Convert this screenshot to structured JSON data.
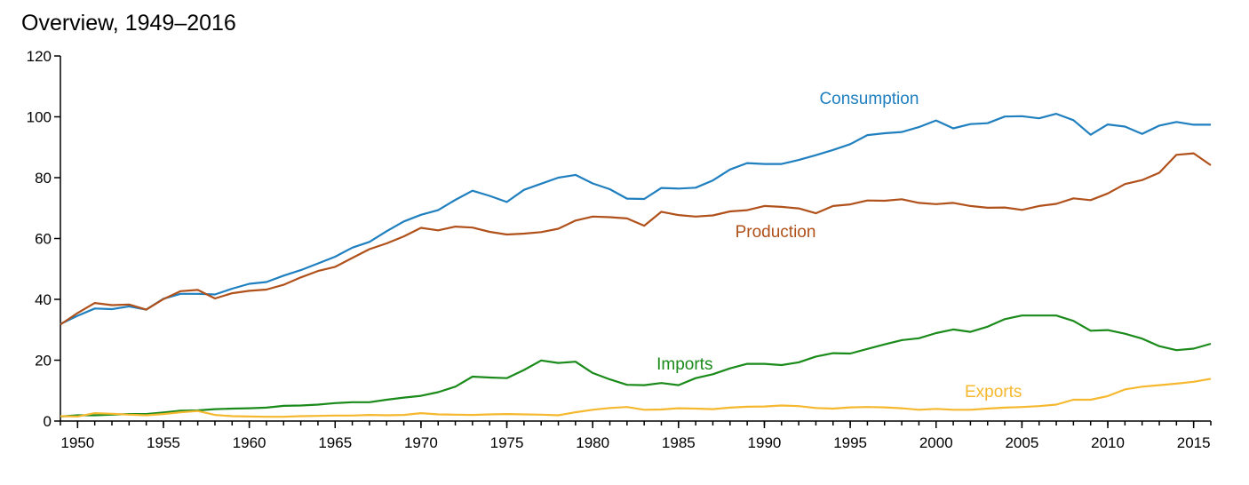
{
  "chart_data": {
    "type": "line",
    "title": "Overview, 1949–2016",
    "xlabel": "",
    "ylabel": "",
    "xlim": [
      1949,
      2016
    ],
    "ylim": [
      0,
      120
    ],
    "y_ticks": [
      0,
      20,
      40,
      60,
      80,
      100,
      120
    ],
    "x_ticks": [
      1950,
      1955,
      1960,
      1965,
      1970,
      1975,
      1980,
      1985,
      1990,
      1995,
      2000,
      2005,
      2010,
      2015
    ],
    "grid": false,
    "legend": "inline labels",
    "x": [
      1949,
      1950,
      1951,
      1952,
      1953,
      1954,
      1955,
      1956,
      1957,
      1958,
      1959,
      1960,
      1961,
      1962,
      1963,
      1964,
      1965,
      1966,
      1967,
      1968,
      1969,
      1970,
      1971,
      1972,
      1973,
      1974,
      1975,
      1976,
      1977,
      1978,
      1979,
      1980,
      1981,
      1982,
      1983,
      1984,
      1985,
      1986,
      1987,
      1988,
      1989,
      1990,
      1991,
      1992,
      1993,
      1994,
      1995,
      1996,
      1997,
      1998,
      1999,
      2000,
      2001,
      2002,
      2003,
      2004,
      2005,
      2006,
      2007,
      2008,
      2009,
      2010,
      2011,
      2012,
      2013,
      2014,
      2015,
      2016
    ],
    "series": [
      {
        "name": "Consumption",
        "color": "#1f7fbf",
        "values": [
          31.9,
          34.6,
          37.0,
          36.8,
          37.7,
          36.6,
          40.2,
          41.8,
          41.8,
          41.6,
          43.5,
          45.1,
          45.7,
          47.8,
          49.6,
          51.8,
          54.0,
          57.0,
          58.9,
          62.4,
          65.6,
          67.8,
          69.3,
          72.7,
          75.7,
          74.0,
          72.0,
          76.0,
          78.0,
          80.0,
          80.9,
          78.1,
          76.2,
          73.1,
          73.0,
          76.6,
          76.4,
          76.7,
          79.1,
          82.7,
          84.8,
          84.5,
          84.5,
          85.8,
          87.4,
          89.1,
          91.0,
          94.0,
          94.6,
          95.0,
          96.6,
          98.8,
          96.2,
          97.6,
          97.9,
          100.1,
          100.2,
          99.5,
          101.0,
          98.9,
          94.1,
          97.5,
          96.8,
          94.4,
          97.1,
          98.3,
          97.4,
          97.4
        ]
      },
      {
        "name": "Production",
        "color": "#b0501a",
        "values": [
          31.7,
          35.5,
          38.8,
          38.1,
          38.3,
          36.6,
          40.1,
          42.7,
          43.1,
          40.3,
          42.0,
          42.8,
          43.2,
          44.8,
          47.2,
          49.3,
          50.7,
          53.6,
          56.5,
          58.4,
          60.7,
          63.5,
          62.7,
          63.9,
          63.6,
          62.2,
          61.3,
          61.6,
          62.1,
          63.2,
          65.9,
          67.2,
          67.0,
          66.6,
          64.2,
          68.8,
          67.7,
          67.2,
          67.6,
          68.9,
          69.3,
          70.7,
          70.4,
          69.9,
          68.3,
          70.7,
          71.2,
          72.5,
          72.4,
          72.9,
          71.7,
          71.3,
          71.7,
          70.7,
          70.1,
          70.2,
          69.4,
          70.7,
          71.4,
          73.2,
          72.6,
          74.8,
          77.9,
          79.2,
          81.6,
          87.5,
          88.0,
          84.1
        ]
      },
      {
        "name": "Imports",
        "color": "#1a8a1a",
        "values": [
          1.5,
          1.9,
          1.9,
          2.1,
          2.3,
          2.3,
          2.8,
          3.4,
          3.5,
          3.9,
          4.1,
          4.2,
          4.4,
          5.0,
          5.1,
          5.4,
          5.9,
          6.2,
          6.2,
          7.0,
          7.7,
          8.3,
          9.5,
          11.3,
          14.6,
          14.3,
          14.1,
          16.8,
          19.9,
          19.1,
          19.5,
          15.8,
          13.7,
          11.9,
          11.8,
          12.5,
          11.8,
          14.1,
          15.4,
          17.3,
          18.8,
          18.8,
          18.4,
          19.3,
          21.2,
          22.3,
          22.2,
          23.7,
          25.2,
          26.6,
          27.2,
          28.9,
          30.1,
          29.3,
          31.0,
          33.5,
          34.7,
          34.7,
          34.7,
          32.9,
          29.7,
          29.9,
          28.7,
          27.1,
          24.6,
          23.3,
          23.8,
          25.4
        ]
      },
      {
        "name": "Exports",
        "color": "#f5b82e",
        "values": [
          1.6,
          1.5,
          2.6,
          2.4,
          2.1,
          1.9,
          2.3,
          2.9,
          3.3,
          2.0,
          1.6,
          1.5,
          1.4,
          1.4,
          1.6,
          1.7,
          1.8,
          1.8,
          2.0,
          1.9,
          2.0,
          2.6,
          2.2,
          2.1,
          2.0,
          2.2,
          2.3,
          2.2,
          2.1,
          1.9,
          2.9,
          3.7,
          4.3,
          4.6,
          3.7,
          3.8,
          4.2,
          4.1,
          3.9,
          4.4,
          4.7,
          4.8,
          5.1,
          4.9,
          4.3,
          4.1,
          4.5,
          4.6,
          4.5,
          4.2,
          3.7,
          4.0,
          3.7,
          3.7,
          4.1,
          4.4,
          4.6,
          4.9,
          5.4,
          7.0,
          7.0,
          8.2,
          10.4,
          11.3,
          11.8,
          12.3,
          12.9,
          13.9
        ]
      }
    ]
  }
}
